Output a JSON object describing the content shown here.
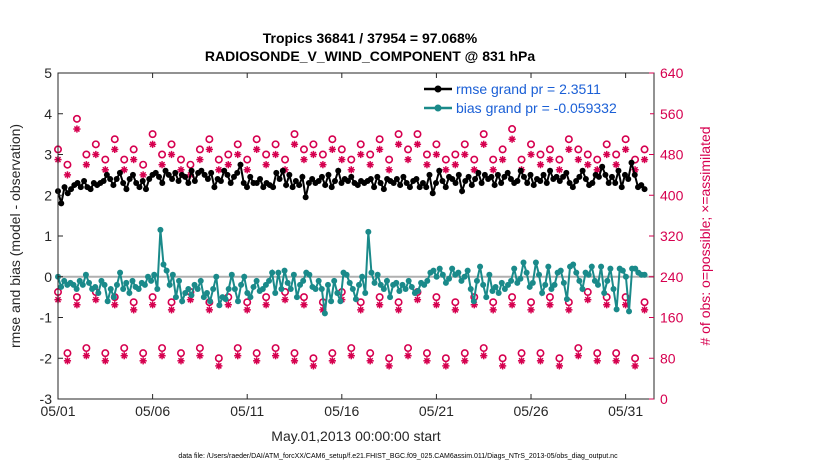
{
  "chart_data": {
    "type": "line",
    "title": "Tropics 36841 / 37954 = 97.068%",
    "subtitle": "RADIOSONDE_V_WIND_COMPONENT @ 831 hPa",
    "xlabel": "May.01,2013 00:00:00 start",
    "ylabel_left": "rmse and bias (model - observation)",
    "ylabel_right": "# of obs: o=possible; ×=assimilated",
    "footer": "data file: /Users/raeder/DAI/ATM_forcXX/CAM6_setup/f.e21.FHIST_BGC.f09_025.CAM6assim.011/Diags_NTrS_2013-05/obs_diag_output.nc",
    "xlim": [
      0,
      31.5
    ],
    "ylim_left": [
      -3,
      5
    ],
    "ylim_right": [
      0,
      640
    ],
    "x_tick_labels": [
      "05/01",
      "05/06",
      "05/11",
      "05/16",
      "05/21",
      "05/26",
      "05/31"
    ],
    "x_tick_values": [
      0,
      5,
      10,
      15,
      20,
      25,
      30
    ],
    "y_left_ticks": [
      "-3",
      "-2",
      "-1",
      "0",
      "1",
      "2",
      "3",
      "4",
      "5"
    ],
    "y_right_ticks": [
      "0",
      "80",
      "160",
      "240",
      "320",
      "400",
      "480",
      "560",
      "640"
    ],
    "zero_line": 0,
    "legend": [
      {
        "name": "rmse grand pr = 2.3511",
        "color": "#000000"
      },
      {
        "name": "bias grand pr = -0.059332",
        "color": "#1a8a8a"
      }
    ],
    "series": [
      {
        "name": "rmse",
        "axis": "left",
        "color": "#000000",
        "values": [
          2.1,
          1.8,
          2.2,
          2.05,
          2.15,
          2.25,
          2.3,
          2.2,
          2.35,
          2.2,
          2.15,
          2.3,
          2.25,
          2.3,
          2.35,
          2.5,
          2.4,
          2.25,
          2.4,
          2.55,
          2.3,
          2.15,
          2.4,
          2.5,
          2.3,
          2.2,
          2.35,
          2.15,
          2.4,
          2.5,
          2.55,
          2.45,
          2.3,
          2.6,
          2.5,
          2.4,
          2.55,
          2.35,
          2.5,
          2.45,
          2.3,
          2.6,
          2.35,
          2.55,
          2.6,
          2.5,
          2.4,
          2.55,
          2.2,
          2.4,
          2.35,
          2.6,
          2.5,
          2.3,
          2.45,
          2.55,
          2.75,
          2.3,
          2.2,
          2.45,
          2.3,
          2.3,
          2.4,
          2.2,
          2.3,
          2.25,
          2.2,
          2.55,
          2.4,
          2.6,
          2.25,
          2.5,
          2.2,
          2.35,
          2.25,
          2.45,
          1.95,
          2.3,
          2.4,
          2.3,
          2.35,
          2.45,
          2.25,
          2.5,
          2.2,
          2.35,
          2.6,
          2.3,
          2.4,
          2.35,
          2.45,
          2.3,
          2.25,
          2.35,
          2.3,
          2.35,
          2.4,
          2.2,
          2.45,
          2.3,
          2.15,
          2.4,
          2.35,
          2.3,
          2.4,
          2.25,
          2.45,
          2.3,
          2.2,
          2.35,
          2.4,
          2.2,
          2.3,
          2.2,
          2.5,
          2.05,
          2.3,
          2.6,
          2.35,
          2.2,
          2.45,
          2.4,
          2.3,
          2.5,
          2.1,
          2.35,
          2.45,
          2.25,
          2.4,
          2.55,
          2.3,
          2.5,
          2.4,
          2.45,
          2.25,
          2.5,
          2.3,
          2.45,
          2.55,
          2.4,
          2.3,
          2.35,
          2.6,
          2.45,
          2.3,
          2.5,
          2.25,
          2.4,
          2.35,
          2.5,
          2.3,
          2.6,
          2.4,
          2.45,
          2.35,
          2.45,
          2.55,
          2.3,
          2.2,
          2.35,
          2.45,
          2.6,
          2.4,
          2.25,
          2.3,
          2.5,
          2.45,
          2.7,
          2.5,
          2.3,
          2.45,
          2.3,
          2.6,
          2.2,
          2.5,
          2.4,
          2.8,
          2.5,
          2.2,
          2.25,
          2.15
        ]
      },
      {
        "name": "bias",
        "axis": "left",
        "color": "#1a8a8a",
        "values": [
          0,
          -0.25,
          -0.1,
          -0.2,
          -0.15,
          -0.2,
          -0.3,
          -0.1,
          -0.2,
          0.05,
          -0.15,
          -0.3,
          -0.25,
          -0.4,
          -0.1,
          -0.2,
          -0.6,
          -0.3,
          -0.5,
          -0.2,
          0.1,
          -0.3,
          -0.15,
          -0.4,
          -0.1,
          -0.25,
          -0.3,
          -0.15,
          -0.2,
          0,
          -0.1,
          0.05,
          -0.3,
          1.15,
          0.3,
          0.15,
          -0.2,
          0.05,
          -0.5,
          -0.1,
          -0.6,
          -0.4,
          -0.3,
          -0.45,
          -0.2,
          -0.3,
          -0.1,
          -0.5,
          -0.4,
          -0.6,
          -0.3,
          0,
          -0.7,
          -0.5,
          -0.55,
          -0.3,
          0.05,
          -0.3,
          -0.6,
          -0.2,
          0,
          -0.4,
          -0.5,
          -0.25,
          -0.1,
          -0.35,
          -0.3,
          -0.2,
          -0.1,
          0.1,
          -0.4,
          0.1,
          -0.3,
          0.15,
          -0.15,
          -0.3,
          0.05,
          -0.5,
          -0.2,
          -0.1,
          0.1,
          0.05,
          -0.25,
          -0.3,
          -0.1,
          -0.3,
          -0.9,
          -0.2,
          -0.6,
          -0.1,
          -0.4,
          -0.6,
          0.1,
          0.05,
          -0.15,
          -0.3,
          -0.55,
          -0.2,
          0,
          -0.4,
          1.1,
          0.1,
          -0.15,
          0.05,
          -0.2,
          -0.3,
          -0.1,
          -0.5,
          -0.2,
          -0.15,
          -0.35,
          -0.2,
          -0.3,
          -0.1,
          -0.25,
          -0.4,
          -0.35,
          -0.15,
          -0.2,
          -0.1,
          0.1,
          0.15,
          0,
          0.2,
          0.05,
          -0.15,
          -0.05,
          0.2,
          0.05,
          0.1,
          -0.1,
          0,
          0.15,
          -0.3,
          -0.6,
          -0.1,
          0.25,
          -0.2,
          -0.5,
          0.05,
          -0.35,
          -0.25,
          -0.4,
          -0.15,
          -0.3,
          -0.2,
          -0.1,
          0.2,
          -0.15,
          -0.05,
          0.35,
          0.1,
          -0.25,
          -0.15,
          0.35,
          0.05,
          -0.4,
          -0.2,
          0.25,
          -0.3,
          -0.2,
          0.1,
          0.15,
          -0.15,
          -0.55,
          0.25,
          0.3,
          0.1,
          -0.1,
          -0.3,
          0.1,
          0.05,
          0.25,
          -0.1,
          -0.2,
          0.25,
          -0.4,
          -0.1,
          0.2,
          -0.3,
          -0.8,
          0.2,
          0.15,
          0,
          -0.85,
          0.2,
          0.2,
          0.1,
          0.05,
          0.05
        ]
      },
      {
        "name": "obs possible (o)",
        "axis": "right",
        "color": "#d6004f",
        "x": [
          0,
          0.5,
          1,
          1.5,
          2,
          2.5,
          3,
          3.5,
          4,
          4.5,
          5,
          5.5,
          6,
          6.5,
          7,
          7.5,
          8,
          8.5,
          9,
          9.5,
          10,
          10.5,
          11,
          11.5,
          12,
          12.5,
          13,
          13.5,
          14,
          14.5,
          15,
          15.5,
          16,
          16.5,
          17,
          17.5,
          18,
          18.5,
          19,
          19.5,
          20,
          20.5,
          21,
          21.5,
          22,
          22.5,
          23,
          23.5,
          24,
          24.5,
          25,
          25.5,
          26,
          26.5,
          27,
          27.5,
          28,
          28.5,
          29,
          29.5,
          30,
          30.5,
          31,
          0,
          0.5,
          1,
          1.5,
          2,
          2.5,
          3,
          3.5,
          4,
          4.5,
          5,
          5.5,
          6,
          6.5,
          7,
          7.5,
          8,
          8.5,
          9,
          9.5,
          10,
          10.5,
          11,
          11.5,
          12,
          12.5,
          13,
          13.5,
          14,
          14.5,
          15,
          15.5,
          16,
          16.5,
          17,
          17.5,
          18,
          18.5,
          19,
          19.5,
          20,
          20.5,
          21,
          21.5,
          22,
          22.5,
          23,
          23.5,
          24,
          24.5,
          25,
          25.5,
          26,
          26.5,
          27,
          27.5,
          28,
          28.5,
          29,
          29.5,
          30,
          30.5,
          31
        ],
        "values": [
          490,
          460,
          550,
          480,
          500,
          470,
          510,
          470,
          490,
          460,
          520,
          480,
          500,
          470,
          460,
          490,
          510,
          470,
          480,
          500,
          470,
          510,
          480,
          500,
          470,
          520,
          490,
          500,
          480,
          510,
          490,
          470,
          500,
          480,
          510,
          470,
          520,
          490,
          520,
          480,
          500,
          470,
          480,
          500,
          470,
          520,
          470,
          490,
          530,
          470,
          500,
          480,
          490,
          470,
          510,
          490,
          480,
          470,
          500,
          480,
          510,
          470,
          490,
          210,
          90,
          200,
          100,
          210,
          90,
          200,
          100,
          190,
          90,
          200,
          100,
          190,
          90,
          210,
          100,
          190,
          80,
          200,
          100,
          190,
          90,
          200,
          100,
          210,
          90,
          200,
          80,
          190,
          90,
          210,
          100,
          190,
          90,
          200,
          80,
          190,
          100,
          210,
          90,
          200,
          80,
          190,
          90,
          200,
          100,
          190,
          80,
          200,
          90,
          190,
          90,
          200,
          80,
          190,
          100,
          210,
          90,
          200,
          90,
          200,
          80,
          190
        ]
      },
      {
        "name": "obs assimilated (×)",
        "axis": "right",
        "color": "#d6004f",
        "x": [
          0,
          0.5,
          1,
          1.5,
          2,
          2.5,
          3,
          3.5,
          4,
          4.5,
          5,
          5.5,
          6,
          6.5,
          7,
          7.5,
          8,
          8.5,
          9,
          9.5,
          10,
          10.5,
          11,
          11.5,
          12,
          12.5,
          13,
          13.5,
          14,
          14.5,
          15,
          15.5,
          16,
          16.5,
          17,
          17.5,
          18,
          18.5,
          19,
          19.5,
          20,
          20.5,
          21,
          21.5,
          22,
          22.5,
          23,
          23.5,
          24,
          24.5,
          25,
          25.5,
          26,
          26.5,
          27,
          27.5,
          28,
          28.5,
          29,
          29.5,
          30,
          30.5,
          31,
          0,
          0.5,
          1,
          1.5,
          2,
          2.5,
          3,
          3.5,
          4,
          4.5,
          5,
          5.5,
          6,
          6.5,
          7,
          7.5,
          8,
          8.5,
          9,
          9.5,
          10,
          10.5,
          11,
          11.5,
          12,
          12.5,
          13,
          13.5,
          14,
          14.5,
          15,
          15.5,
          16,
          16.5,
          17,
          17.5,
          18,
          18.5,
          19,
          19.5,
          20,
          20.5,
          21,
          21.5,
          22,
          22.5,
          23,
          23.5,
          24,
          24.5,
          25,
          25.5,
          26,
          26.5,
          27,
          27.5,
          28,
          28.5,
          29,
          29.5,
          30,
          30.5,
          31
        ],
        "values": [
          470,
          440,
          530,
          460,
          480,
          450,
          490,
          450,
          470,
          440,
          500,
          460,
          480,
          450,
          440,
          470,
          490,
          450,
          460,
          480,
          450,
          490,
          460,
          480,
          450,
          500,
          470,
          480,
          460,
          490,
          470,
          450,
          480,
          460,
          490,
          450,
          500,
          470,
          500,
          460,
          480,
          450,
          460,
          480,
          450,
          500,
          450,
          470,
          510,
          450,
          480,
          460,
          470,
          450,
          490,
          470,
          460,
          450,
          480,
          460,
          490,
          450,
          470,
          195,
          75,
          185,
          85,
          195,
          75,
          185,
          85,
          175,
          75,
          185,
          85,
          175,
          75,
          195,
          85,
          175,
          65,
          185,
          85,
          175,
          75,
          185,
          85,
          195,
          75,
          185,
          65,
          175,
          75,
          195,
          85,
          175,
          75,
          185,
          65,
          175,
          85,
          195,
          75,
          185,
          65,
          175,
          75,
          185,
          85,
          175,
          65,
          185,
          75,
          175,
          75,
          185,
          65,
          175,
          85,
          195,
          75,
          185,
          75,
          185,
          65,
          175
        ]
      }
    ]
  }
}
